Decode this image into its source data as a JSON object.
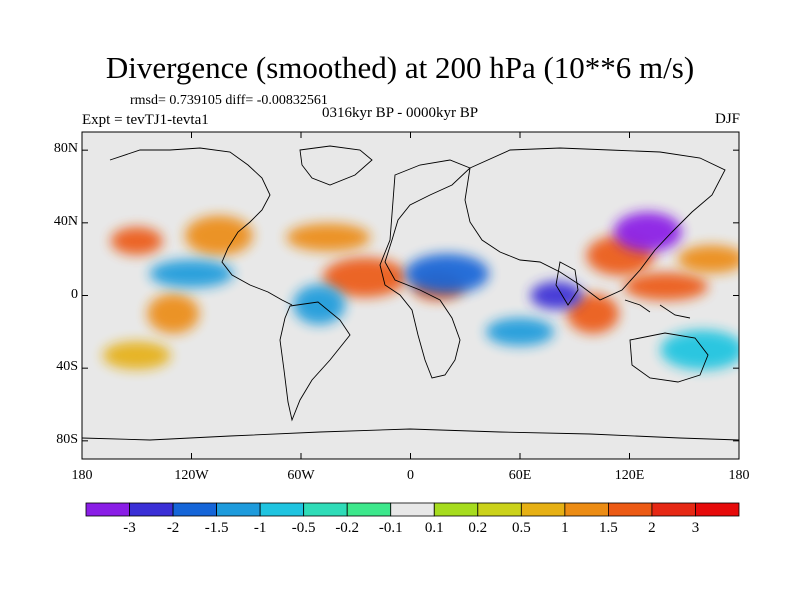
{
  "title": "Divergence (smoothed) at 200 hPa (10**6 m/s)",
  "stats": "rmsd= 0.739105 diff= -0.00832561",
  "period": "0316kyr BP - 0000kyr BP",
  "experiment": "Expt = tevTJ1-tevta1",
  "season": "DJF",
  "chart_data": {
    "type": "heatmap",
    "title": "Divergence (smoothed) at 200 hPa (10**6 m/s)",
    "projection": "cylindrical equidistant world map",
    "xlim": [
      -180,
      180
    ],
    "ylim": [
      -90,
      90
    ],
    "x_ticks": [
      {
        "value": -180,
        "label": "180"
      },
      {
        "value": -120,
        "label": "120W"
      },
      {
        "value": -60,
        "label": "60W"
      },
      {
        "value": 0,
        "label": "0"
      },
      {
        "value": 60,
        "label": "60E"
      },
      {
        "value": 120,
        "label": "120E"
      },
      {
        "value": 180,
        "label": "180"
      }
    ],
    "y_ticks": [
      {
        "value": 80,
        "label": "80N"
      },
      {
        "value": 40,
        "label": "40N"
      },
      {
        "value": 0,
        "label": "0"
      },
      {
        "value": -40,
        "label": "40S"
      },
      {
        "value": -80,
        "label": "80S"
      }
    ],
    "colorbar": {
      "levels": [
        "-3",
        "-2",
        "-1.5",
        "-1",
        "-0.5",
        "-0.2",
        "-0.1",
        "0.1",
        "0.2",
        "0.5",
        "1",
        "1.5",
        "2",
        "3"
      ],
      "colors": [
        "#8a1ee6",
        "#3b2fd6",
        "#1565d8",
        "#1e9bdc",
        "#1fc4e0",
        "#2fdcb8",
        "#3de88c",
        "#e8e8e8",
        "#a6dc1e",
        "#cbd21a",
        "#e6b014",
        "#ec8c14",
        "#ec5a14",
        "#e62814",
        "#e60a0a"
      ]
    },
    "features": [
      {
        "lon": -150,
        "lat": 30,
        "value": 2
      },
      {
        "lon": -105,
        "lat": 33,
        "value": 1.5
      },
      {
        "lon": -45,
        "lat": 32,
        "value": 1.5
      },
      {
        "lon": -130,
        "lat": -10,
        "value": 1.5
      },
      {
        "lon": -150,
        "lat": -33,
        "value": 1
      },
      {
        "lon": -25,
        "lat": 10,
        "value": 2
      },
      {
        "lon": 15,
        "lat": 5,
        "value": 2
      },
      {
        "lon": 115,
        "lat": 22,
        "value": 2
      },
      {
        "lon": 140,
        "lat": 5,
        "value": 2
      },
      {
        "lon": 100,
        "lat": -10,
        "value": 2
      },
      {
        "lon": 165,
        "lat": 20,
        "value": 1.5
      },
      {
        "lon": 20,
        "lat": 12,
        "value": -1.5
      },
      {
        "lon": 80,
        "lat": 0,
        "value": -2
      },
      {
        "lon": 130,
        "lat": 35,
        "value": -3
      },
      {
        "lon": -120,
        "lat": 12,
        "value": -1
      },
      {
        "lon": -50,
        "lat": -5,
        "value": -1
      },
      {
        "lon": 60,
        "lat": -20,
        "value": -1
      },
      {
        "lon": 160,
        "lat": -30,
        "value": -0.5
      }
    ]
  }
}
